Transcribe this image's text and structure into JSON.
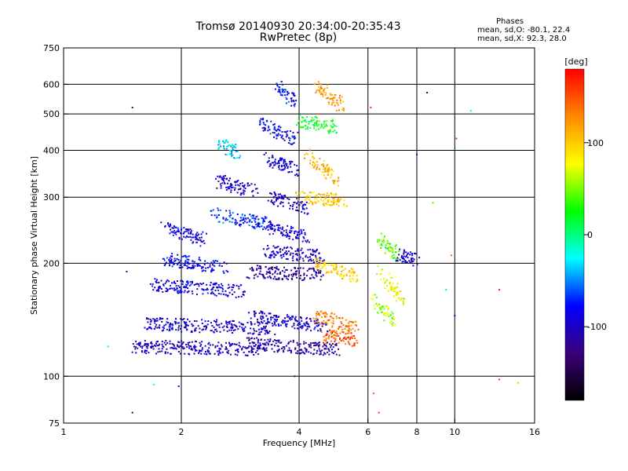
{
  "chart_data": {
    "type": "scatter",
    "title": "Tromsø 20140930 20:34:00-20:35:43",
    "subtitle": "RwPretec (8p)",
    "xlabel": "Frequency [MHz]",
    "ylabel": "Stationary phase Virtual Height [km]",
    "x_scale": "log",
    "y_scale": "log",
    "xlim": [
      1,
      16
    ],
    "ylim": [
      75,
      750
    ],
    "x_ticks": [
      1,
      2,
      4,
      6,
      8,
      10,
      16
    ],
    "x_tick_labels": [
      "1",
      "2",
      "4",
      "6",
      "8",
      "10",
      "16"
    ],
    "y_ticks": [
      75,
      100,
      200,
      300,
      400,
      500,
      600,
      750
    ],
    "y_tick_labels": [
      "75",
      "100",
      "200",
      "300",
      "400",
      "500",
      "600",
      "750"
    ],
    "x_gridlines": [
      2,
      4,
      6,
      8,
      10
    ],
    "y_gridlines": [
      100,
      200,
      300,
      400,
      500,
      600
    ],
    "grid": true,
    "colorbar": {
      "label": "[deg]",
      "min": -180,
      "max": 180,
      "ticks": [
        -100,
        0,
        100
      ],
      "tick_labels": [
        "-100",
        "0",
        "100"
      ],
      "colors": [
        "#000000",
        "#3a007a",
        "#0000ff",
        "#00ffff",
        "#00ff00",
        "#ffff00",
        "#ff8800",
        "#ff0000"
      ]
    },
    "phase_stats": {
      "header": "Phases",
      "o_line": "mean, sd,O: -80.1, 22.4",
      "x_line": "mean, sd,X:  92.3, 28.0"
    },
    "traces": [
      {
        "x": [
          1.5,
          3.2
        ],
        "y": [
          120,
          118
        ],
        "phase": -100
      },
      {
        "x": [
          1.6,
          3.4
        ],
        "y": [
          138,
          134
        ],
        "phase": -95
      },
      {
        "x": [
          1.7,
          2.9
        ],
        "y": [
          175,
          168
        ],
        "phase": -90
      },
      {
        "x": [
          1.8,
          2.6
        ],
        "y": [
          205,
          195
        ],
        "phase": -85
      },
      {
        "x": [
          1.8,
          2.3
        ],
        "y": [
          250,
          230
        ],
        "phase": -90
      },
      {
        "x": [
          2.4,
          3.3
        ],
        "y": [
          270,
          255
        ],
        "phase": -70
      },
      {
        "x": [
          2.5,
          3.1
        ],
        "y": [
          330,
          310
        ],
        "phase": -100
      },
      {
        "x": [
          2.5,
          2.8
        ],
        "y": [
          420,
          390
        ],
        "phase": -30
      },
      {
        "x": [
          2.9,
          5.0
        ],
        "y": [
          122,
          118
        ],
        "phase": -110
      },
      {
        "x": [
          3.0,
          4.8
        ],
        "y": [
          145,
          135
        ],
        "phase": -95
      },
      {
        "x": [
          3.0,
          4.6
        ],
        "y": [
          190,
          186
        ],
        "phase": -115
      },
      {
        "x": [
          3.3,
          4.6
        ],
        "y": [
          215,
          208
        ],
        "phase": -100
      },
      {
        "x": [
          3.3,
          4.2
        ],
        "y": [
          250,
          235
        ],
        "phase": -90
      },
      {
        "x": [
          3.4,
          4.2
        ],
        "y": [
          300,
          280
        ],
        "phase": -100
      },
      {
        "x": [
          3.3,
          4.0
        ],
        "y": [
          380,
          350
        ],
        "phase": -95
      },
      {
        "x": [
          3.2,
          3.9
        ],
        "y": [
          470,
          430
        ],
        "phase": -85
      },
      {
        "x": [
          3.5,
          3.9
        ],
        "y": [
          600,
          540
        ],
        "phase": -80
      },
      {
        "x": [
          4.0,
          5.2
        ],
        "y": [
          300,
          295
        ],
        "phase": 100
      },
      {
        "x": [
          4.0,
          5.0
        ],
        "y": [
          480,
          460
        ],
        "phase": 20
      },
      {
        "x": [
          4.2,
          5.0
        ],
        "y": [
          390,
          330
        ],
        "phase": 110
      },
      {
        "x": [
          4.4,
          5.6
        ],
        "y": [
          145,
          135
        ],
        "phase": 130
      },
      {
        "x": [
          4.6,
          5.6
        ],
        "y": [
          128,
          125
        ],
        "phase": 150
      },
      {
        "x": [
          4.4,
          5.6
        ],
        "y": [
          200,
          185
        ],
        "phase": 100
      },
      {
        "x": [
          4.4,
          5.2
        ],
        "y": [
          600,
          520
        ],
        "phase": 120
      },
      {
        "x": [
          6.2,
          7.0
        ],
        "y": [
          160,
          140
        ],
        "phase": 60
      },
      {
        "x": [
          6.4,
          7.4
        ],
        "y": [
          190,
          160
        ],
        "phase": 80
      },
      {
        "x": [
          6.4,
          7.2
        ],
        "y": [
          230,
          210
        ],
        "phase": 40
      },
      {
        "x": [
          7.2,
          8.0
        ],
        "y": [
          210,
          205
        ],
        "phase": -100
      }
    ],
    "isolated_points": [
      {
        "x": 1.3,
        "y": 120,
        "phase": -10
      },
      {
        "x": 1.45,
        "y": 190,
        "phase": -120
      },
      {
        "x": 1.5,
        "y": 80,
        "phase": -140
      },
      {
        "x": 1.5,
        "y": 520,
        "phase": -120
      },
      {
        "x": 1.7,
        "y": 95,
        "phase": -20
      },
      {
        "x": 1.97,
        "y": 94,
        "phase": -100
      },
      {
        "x": 3.9,
        "y": 100,
        "phase": -120
      },
      {
        "x": 4.5,
        "y": 500,
        "phase": 150
      },
      {
        "x": 6.1,
        "y": 520,
        "phase": 160
      },
      {
        "x": 6.2,
        "y": 90,
        "phase": 150
      },
      {
        "x": 6.4,
        "y": 80,
        "phase": 160
      },
      {
        "x": 6.5,
        "y": 240,
        "phase": 40
      },
      {
        "x": 8.0,
        "y": 390,
        "phase": -100
      },
      {
        "x": 8.5,
        "y": 570,
        "phase": -120
      },
      {
        "x": 8.8,
        "y": 290,
        "phase": 40
      },
      {
        "x": 9.5,
        "y": 170,
        "phase": 10
      },
      {
        "x": 9.8,
        "y": 210,
        "phase": 140
      },
      {
        "x": 10.0,
        "y": 145,
        "phase": -110
      },
      {
        "x": 10.1,
        "y": 430,
        "phase": 160
      },
      {
        "x": 11.0,
        "y": 510,
        "phase": -10
      },
      {
        "x": 13.0,
        "y": 170,
        "phase": 170
      },
      {
        "x": 13.0,
        "y": 98,
        "phase": 160
      },
      {
        "x": 14.5,
        "y": 96,
        "phase": 110
      }
    ]
  }
}
